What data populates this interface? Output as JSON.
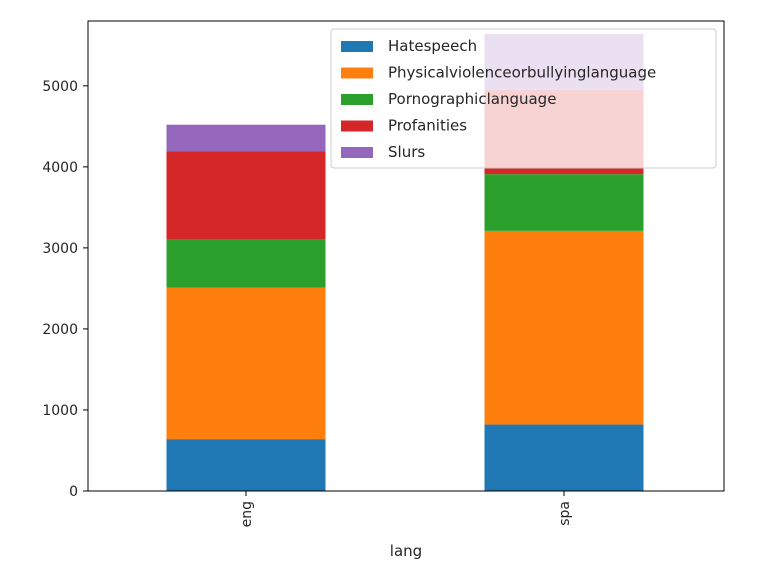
{
  "chart_data": {
    "type": "bar",
    "stacked": true,
    "categories": [
      "eng",
      "spa"
    ],
    "xlabel": "lang",
    "ylabel": "",
    "ylim": [
      0,
      5800
    ],
    "yticks": [
      0,
      1000,
      2000,
      3000,
      4000,
      5000
    ],
    "grid": false,
    "legend_position": "top-right",
    "series": [
      {
        "name": "Hatespeech",
        "color": "#1f77b4",
        "values": [
          640,
          820
        ]
      },
      {
        "name": "Physicalviolenceorbullyinglanguage",
        "color": "#ff7f0e",
        "values": [
          1870,
          2390
        ]
      },
      {
        "name": "Pornographiclanguage",
        "color": "#2ca02c",
        "values": [
          590,
          700
        ]
      },
      {
        "name": "Profanities",
        "color": "#d62728",
        "values": [
          1090,
          1040
        ]
      },
      {
        "name": "Slurs",
        "color": "#9467bd",
        "values": [
          330,
          690
        ]
      }
    ]
  }
}
